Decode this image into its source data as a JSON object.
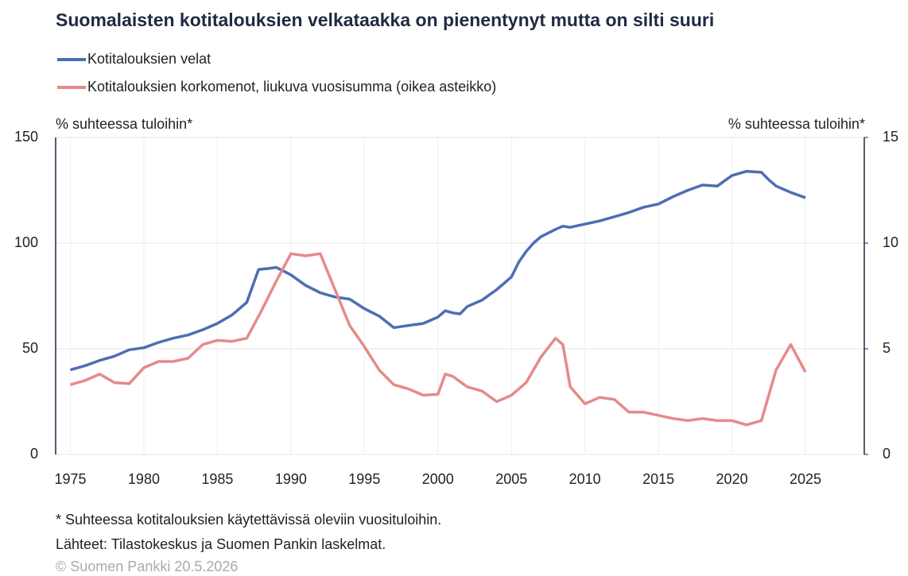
{
  "chart_data": {
    "type": "line",
    "title": "Suomalaisten kotitalouksien velkataakka on pienentynyt mutta on silti suuri",
    "ylabel": "% suhteessa tuloihin*",
    "y2label": "% suhteessa tuloihin*",
    "xlim": [
      1974,
      2029
    ],
    "xticks": [
      1975,
      1980,
      1985,
      1990,
      1995,
      2000,
      2005,
      2010,
      2015,
      2020,
      2025
    ],
    "ylim": [
      0,
      150
    ],
    "yticks": [
      0,
      50,
      100,
      150
    ],
    "y2lim": [
      0,
      15
    ],
    "y2ticks": [
      0,
      5,
      10,
      15
    ],
    "grid": true,
    "legend": "top-left",
    "series": [
      {
        "name": "Kotitalouksien velat",
        "color": "#4f6db3",
        "x": [
          1975,
          1976,
          1977,
          1978,
          1979,
          1980,
          1981,
          1982,
          1983,
          1984,
          1985,
          1986,
          1987,
          1987.8,
          1988.5,
          1989,
          1990,
          1991,
          1992,
          1993,
          1994,
          1995,
          1996,
          1997,
          1998,
          1999,
          2000,
          2000.5,
          2001,
          2001.5,
          2002,
          2003,
          2004,
          2005,
          2005.5,
          2006,
          2006.5,
          2007,
          2008,
          2008.5,
          2009,
          2010,
          2011,
          2012,
          2013,
          2014,
          2015,
          2016,
          2017,
          2018,
          2019,
          2020,
          2021,
          2022,
          2022.5,
          2023,
          2024,
          2025
        ],
        "values": [
          40,
          42,
          44.5,
          46.5,
          49.5,
          50.5,
          53,
          55,
          56.5,
          59,
          62,
          66,
          72,
          87.5,
          88,
          88.5,
          85,
          80,
          76.5,
          74.5,
          73.5,
          69,
          65.5,
          60,
          61,
          62,
          65,
          68,
          67,
          66.5,
          70,
          73,
          78,
          84,
          91,
          96,
          100,
          103,
          106.5,
          108,
          107.5,
          109,
          110.5,
          112.5,
          114.5,
          117,
          118.5,
          122,
          125,
          127.5,
          127,
          132,
          134,
          133.5,
          130,
          127,
          124,
          121.5
        ]
      },
      {
        "name": "Kotitalouksien korkomenot, liukuva vuosisumma (oikea asteikko)",
        "color": "#e58a8a",
        "axis": "y2",
        "x": [
          1975,
          1976,
          1977,
          1978,
          1979,
          1980,
          1981,
          1982,
          1983,
          1984,
          1985,
          1986,
          1987,
          1988,
          1989,
          1990,
          1991,
          1992,
          1993,
          1994,
          1995,
          1996,
          1997,
          1998,
          1999,
          2000,
          2000.5,
          2001,
          2002,
          2003,
          2004,
          2005,
          2006,
          2007,
          2008,
          2008.5,
          2009,
          2010,
          2011,
          2012,
          2013,
          2014,
          2015,
          2016,
          2017,
          2018,
          2019,
          2020,
          2021,
          2022,
          2023,
          2024,
          2025
        ],
        "values": [
          3.3,
          3.5,
          3.8,
          3.4,
          3.35,
          4.1,
          4.4,
          4.4,
          4.55,
          5.2,
          5.4,
          5.35,
          5.5,
          6.8,
          8.2,
          9.5,
          9.4,
          9.5,
          7.8,
          6.1,
          5.1,
          4.0,
          3.3,
          3.1,
          2.8,
          2.85,
          3.8,
          3.7,
          3.2,
          3.0,
          2.5,
          2.8,
          3.4,
          4.6,
          5.5,
          5.2,
          3.2,
          2.4,
          2.7,
          2.6,
          2.0,
          2.0,
          1.85,
          1.7,
          1.6,
          1.7,
          1.6,
          1.6,
          1.4,
          1.6,
          4.0,
          5.2,
          3.9
        ]
      }
    ],
    "notes": [
      "* Suhteessa kotitalouksien käytettävissä oleviin vuosituloihin.",
      "Lähteet: Tilastokeskus ja Suomen Pankin laskelmat.",
      "© Suomen Pankki 20.5.2026"
    ]
  }
}
